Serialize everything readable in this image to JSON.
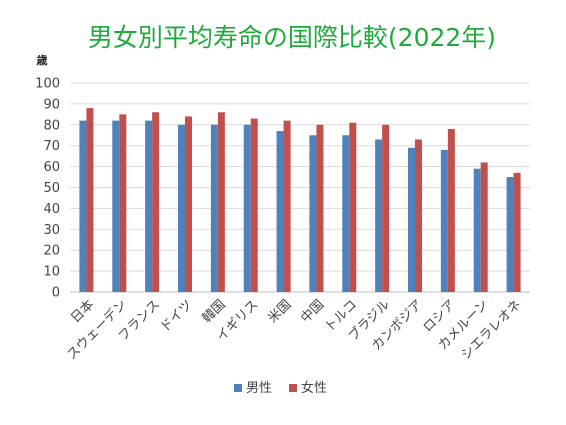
{
  "chart_data": {
    "type": "bar",
    "title": "男女別平均寿命の国際比較(2022年)",
    "ylabel": "歳",
    "ylim": [
      0,
      100
    ],
    "yticks": [
      0,
      10,
      20,
      30,
      40,
      50,
      60,
      70,
      80,
      90,
      100
    ],
    "grid": true,
    "legend_position": "bottom",
    "categories": [
      "日本",
      "スウェーデン",
      "フランス",
      "ドイツ",
      "韓国",
      "イギリス",
      "米国",
      "中国",
      "トルコ",
      "ブラジル",
      "カンボジア",
      "ロシア",
      "カメルーン",
      "シエラレオネ"
    ],
    "series": [
      {
        "name": "男性",
        "color": "#4f81bd",
        "values": [
          82,
          82,
          82,
          80,
          80,
          80,
          77,
          75,
          75,
          73,
          69,
          68,
          59,
          55
        ]
      },
      {
        "name": "女性",
        "color": "#c0504d",
        "values": [
          88,
          85,
          86,
          84,
          86,
          83,
          82,
          80,
          81,
          80,
          73,
          78,
          62,
          57
        ]
      }
    ]
  }
}
